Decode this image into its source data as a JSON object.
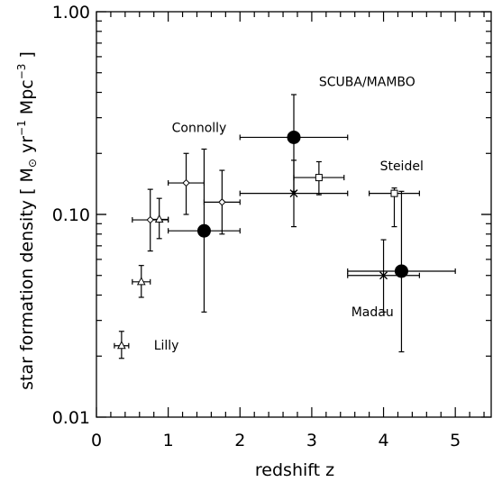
{
  "chart_data": {
    "type": "scatter",
    "xlabel": "redshift  z",
    "ylabel": {
      "prefix": "star formation density [ M",
      "sun_symbol": "⊙",
      "middle": " yr",
      "yr_exp": "−1",
      "mpc": " Mpc",
      "mpc_exp": "−3",
      "suffix": " ]"
    },
    "xlim": [
      0,
      5.5
    ],
    "ylim": [
      0.01,
      1.0
    ],
    "yscale": "log",
    "x_ticks": [
      {
        "value": 0,
        "label": "0"
      },
      {
        "value": 1,
        "label": "1"
      },
      {
        "value": 2,
        "label": "2"
      },
      {
        "value": 3,
        "label": "3"
      },
      {
        "value": 4,
        "label": "4"
      },
      {
        "value": 5,
        "label": "5"
      }
    ],
    "y_ticks": [
      {
        "value": 0.01,
        "label": "0.01"
      },
      {
        "value": 0.1,
        "label": "0.10"
      },
      {
        "value": 1.0,
        "label": "1.00"
      }
    ],
    "grid": false,
    "annotations": [
      {
        "text": "SCUBA/MAMBO",
        "x": 3.1,
        "y": 0.43
      },
      {
        "text": "Connolly",
        "x": 1.05,
        "y": 0.255
      },
      {
        "text": "Steidel",
        "x": 3.95,
        "y": 0.165
      },
      {
        "text": "Madau",
        "x": 3.55,
        "y": 0.0315
      },
      {
        "text": "Lilly",
        "x": 0.8,
        "y": 0.0215
      }
    ],
    "series": [
      {
        "marker": "triangle",
        "points": [
          {
            "x": 0.35,
            "y": 0.0225,
            "xerr": [
              0.1,
              0.1
            ],
            "ylo": 0.0195,
            "yhi": 0.0265
          },
          {
            "x": 0.625,
            "y": 0.0465,
            "xerr": [
              0.125,
              0.125
            ],
            "ylo": 0.039,
            "yhi": 0.056
          },
          {
            "x": 0.875,
            "y": 0.0945,
            "xerr": [
              0.125,
              0.125
            ],
            "ylo": 0.076,
            "yhi": 0.12
          }
        ]
      },
      {
        "marker": "diamond",
        "points": [
          {
            "x": 0.75,
            "y": 0.094,
            "xerr": [
              0.25,
              0.25
            ],
            "ylo": 0.066,
            "yhi": 0.133
          },
          {
            "x": 1.25,
            "y": 0.143,
            "xerr": [
              0.25,
              0.25
            ],
            "ylo": 0.1,
            "yhi": 0.2
          },
          {
            "x": 1.75,
            "y": 0.115,
            "xerr": [
              0.25,
              0.25
            ],
            "ylo": 0.08,
            "yhi": 0.165
          }
        ]
      },
      {
        "marker": "filled-circle",
        "points": [
          {
            "x": 1.5,
            "y": 0.083,
            "xerr": [
              0.5,
              0.5
            ],
            "ylo": 0.033,
            "yhi": 0.21
          },
          {
            "x": 2.75,
            "y": 0.24,
            "xerr": [
              0.75,
              0.75
            ],
            "ylo": 0.13,
            "yhi": 0.39
          },
          {
            "x": 4.25,
            "y": 0.0525,
            "xerr": [
              0.75,
              0.75
            ],
            "ylo": 0.021,
            "yhi": 0.13
          }
        ]
      },
      {
        "marker": "cross",
        "points": [
          {
            "x": 2.75,
            "y": 0.127,
            "xerr": [
              0.75,
              0.75
            ],
            "ylo": 0.087,
            "yhi": 0.185
          },
          {
            "x": 4.0,
            "y": 0.05,
            "xerr": [
              0.5,
              0.5
            ],
            "ylo": 0.033,
            "yhi": 0.075
          }
        ]
      },
      {
        "marker": "square",
        "points": [
          {
            "x": 3.1,
            "y": 0.152,
            "xerr": [
              0.35,
              0.35
            ],
            "ylo": 0.125,
            "yhi": 0.182
          },
          {
            "x": 4.15,
            "y": 0.127,
            "xerr": [
              0.35,
              0.35
            ],
            "ylo": 0.087,
            "yhi": 0.135
          }
        ]
      }
    ]
  }
}
